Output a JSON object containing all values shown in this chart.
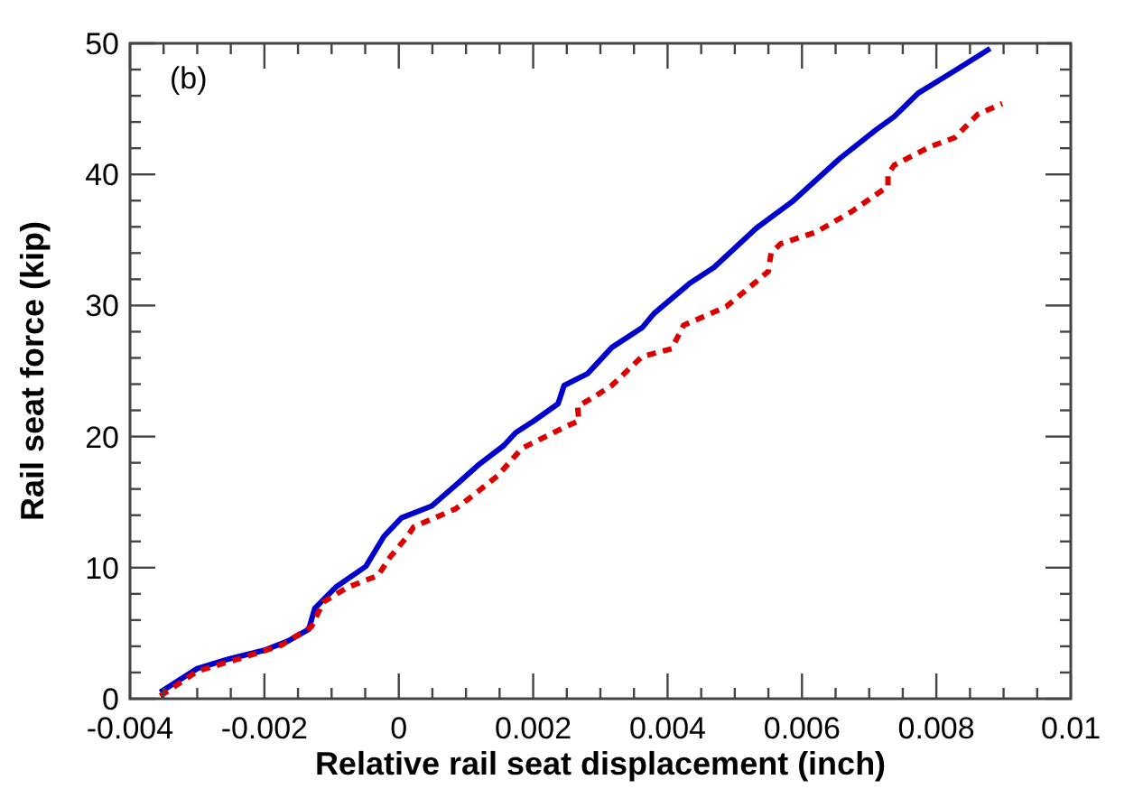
{
  "chart_data": {
    "type": "line",
    "xlabel": "Relative rail seat displacement (inch)",
    "ylabel": "Rail seat force (kip)",
    "annotations": [
      "(b)"
    ],
    "xlim": [
      -0.004,
      0.01
    ],
    "ylim": [
      0,
      50
    ],
    "xticks": [
      -0.004,
      {
        "value": -0.0035,
        "label": null
      },
      {
        "value": -0.003,
        "label": null
      },
      {
        "value": -0.0025,
        "label": null
      },
      -0.002,
      {
        "value": -0.0015,
        "label": null
      },
      {
        "value": -0.001,
        "label": null
      },
      {
        "value": -0.0005,
        "label": null
      },
      0,
      {
        "value": 0.0005,
        "label": null
      },
      {
        "value": 0.001,
        "label": null
      },
      {
        "value": 0.0015,
        "label": null
      },
      0.002,
      {
        "value": 0.0025,
        "label": null
      },
      {
        "value": 0.003,
        "label": null
      },
      {
        "value": 0.0035,
        "label": null
      },
      0.004,
      {
        "value": 0.0045,
        "label": null
      },
      {
        "value": 0.005,
        "label": null
      },
      {
        "value": 0.0055,
        "label": null
      },
      0.006,
      {
        "value": 0.0065,
        "label": null
      },
      {
        "value": 0.007,
        "label": null
      },
      {
        "value": 0.0075,
        "label": null
      },
      0.008,
      {
        "value": 0.0085,
        "label": null
      },
      {
        "value": 0.009,
        "label": null
      },
      {
        "value": 0.0095,
        "label": null
      },
      0.01
    ],
    "yticks": [
      0,
      {
        "value": 2,
        "label": null
      },
      {
        "value": 4,
        "label": null
      },
      {
        "value": 6,
        "label": null
      },
      {
        "value": 8,
        "label": null
      },
      10,
      {
        "value": 12,
        "label": null
      },
      {
        "value": 14,
        "label": null
      },
      {
        "value": 16,
        "label": null
      },
      {
        "value": 18,
        "label": null
      },
      20,
      {
        "value": 22,
        "label": null
      },
      {
        "value": 24,
        "label": null
      },
      {
        "value": 26,
        "label": null
      },
      {
        "value": 28,
        "label": null
      },
      30,
      {
        "value": 32,
        "label": null
      },
      {
        "value": 34,
        "label": null
      },
      {
        "value": 36,
        "label": null
      },
      {
        "value": 38,
        "label": null
      },
      40,
      {
        "value": 42,
        "label": null
      },
      {
        "value": 44,
        "label": null
      },
      {
        "value": 46,
        "label": null
      },
      {
        "value": 48,
        "label": null
      },
      50
    ],
    "grid": false,
    "series": [
      {
        "color": "#0000cc",
        "line_style": "solid",
        "x": [
          -0.00355,
          -0.003,
          -0.00255,
          -0.002,
          -0.00165,
          -0.00134,
          -0.00125,
          -0.00094,
          -0.00049,
          -0.00022,
          4e-05,
          0.00049,
          0.00085,
          0.0012,
          0.00156,
          0.00174,
          0.00201,
          0.00237,
          0.00246,
          0.00281,
          0.00317,
          0.00362,
          0.0038,
          0.00433,
          0.00469,
          0.00532,
          0.00585,
          0.00656,
          0.0071,
          0.00737,
          0.00773,
          0.00827,
          0.0088
        ],
        "values": [
          0.5,
          2.3,
          3.0,
          3.7,
          4.4,
          5.3,
          6.9,
          8.5,
          10.1,
          12.4,
          13.8,
          14.7,
          16.3,
          17.9,
          19.3,
          20.3,
          21.2,
          22.5,
          23.9,
          24.8,
          26.8,
          28.3,
          29.4,
          31.7,
          32.9,
          35.9,
          37.9,
          41.2,
          43.4,
          44.4,
          46.2,
          47.9,
          49.6
        ]
      },
      {
        "color": "#dd0000",
        "line_style": "dashed",
        "x": [
          -0.00355,
          -0.003,
          -0.00228,
          -0.00174,
          -0.0013,
          -0.00112,
          -0.00076,
          -0.00031,
          -0.00013,
          0.00013,
          0.00022,
          0.00085,
          0.0012,
          0.00147,
          0.00183,
          0.00246,
          0.00268,
          0.00266,
          0.0029,
          0.00317,
          0.00362,
          0.00406,
          0.00424,
          0.00487,
          0.0055,
          0.00554,
          0.00568,
          0.00621,
          0.00675,
          0.00728,
          0.00728,
          0.00737,
          0.0079,
          0.00827,
          0.00862,
          0.00898
        ],
        "values": [
          0.2,
          2.1,
          3.2,
          4.1,
          5.5,
          7.4,
          8.5,
          9.4,
          10.8,
          12.4,
          13.1,
          14.5,
          15.9,
          17.0,
          19.1,
          20.7,
          21.2,
          22.3,
          23.0,
          23.9,
          26.1,
          26.7,
          28.5,
          29.9,
          32.6,
          34.0,
          34.7,
          35.6,
          37.2,
          39.1,
          40.0,
          40.7,
          42.1,
          42.8,
          44.6,
          45.4
        ]
      }
    ]
  }
}
